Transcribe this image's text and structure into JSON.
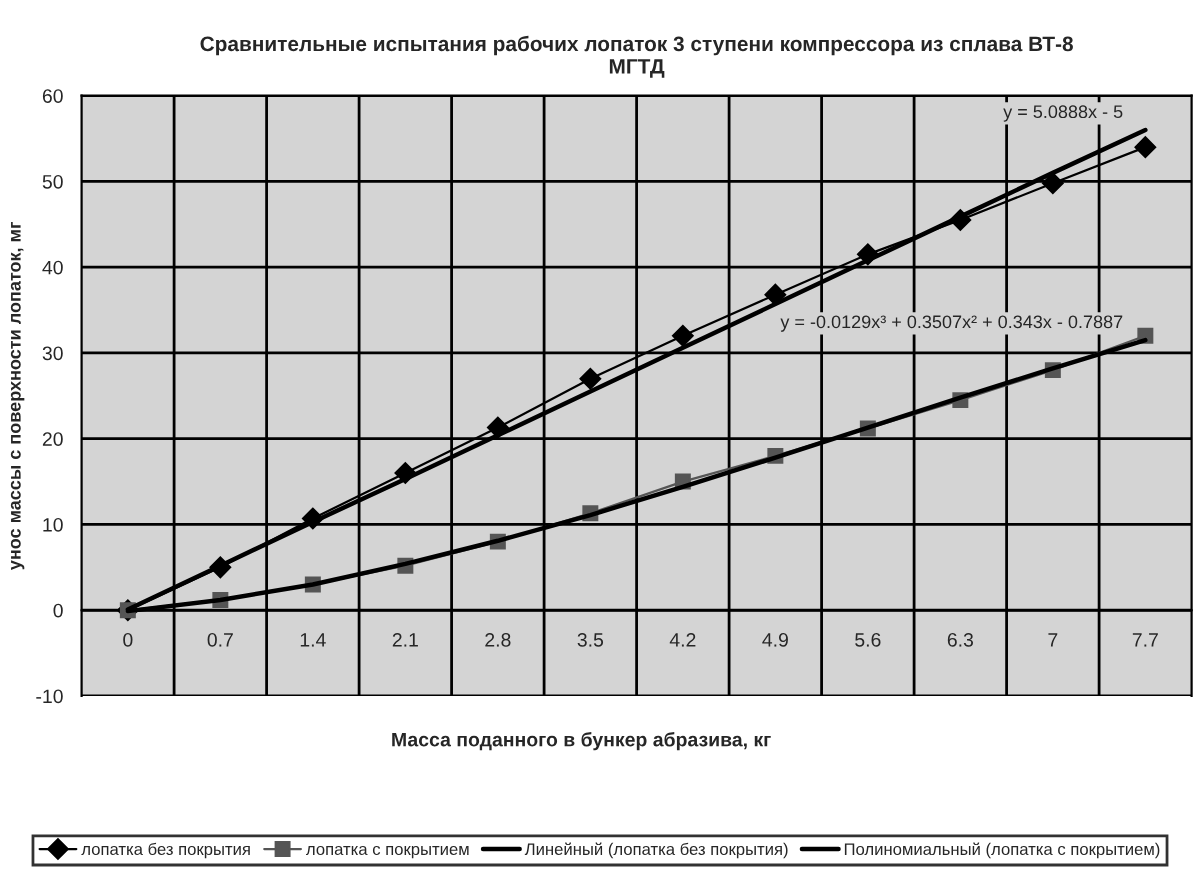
{
  "chart_data": {
    "type": "line",
    "title": "Сравнительные испытания рабочих лопаток 3 ступени компрессора из сплава ВТ-8\nМГТД",
    "xlabel": "Масса поданного в бункер абразива, кг",
    "ylabel": "унос массы с поверхности лопаток, мг",
    "categories": [
      "0",
      "0.7",
      "1.4",
      "2.1",
      "2.8",
      "3.5",
      "4.2",
      "4.9",
      "5.6",
      "6.3",
      "7",
      "7.7"
    ],
    "series": [
      {
        "name": "лопатка без покрытия",
        "color": "#000000",
        "marker": "diamond",
        "values": [
          0,
          5,
          10.7,
          16,
          21.3,
          27,
          32,
          36.8,
          41.5,
          45.5,
          49.8,
          54
        ]
      },
      {
        "name": "лопатка с покрытием",
        "color": "#555555",
        "marker": "square",
        "values": [
          0,
          1.2,
          3,
          5.2,
          8,
          11.3,
          15,
          18,
          21.2,
          24.5,
          28,
          32
        ]
      },
      {
        "name": "Линейный (лопатка без покрытия)",
        "color": "#000000",
        "marker": "none",
        "values": [
          0.1,
          5.2,
          10.3,
          15.3,
          20.4,
          25.5,
          30.6,
          35.7,
          40.8,
          45.9,
          51,
          56
        ]
      },
      {
        "name": "Полиномиальный (лопатка с покрытием)",
        "color": "#000000",
        "marker": "none",
        "values": [
          -0.1,
          1.2,
          3,
          5.4,
          8.1,
          11.1,
          14.4,
          17.8,
          21.3,
          24.8,
          28.2,
          31.5
        ]
      }
    ],
    "annotations": [
      {
        "text": "y = 5.0888x - 5",
        "x": "7.7",
        "y": 56
      },
      {
        "text": "y = -0.0129x³ + 0.3507x² + 0.343x - 0.7887",
        "x": "7.7",
        "y": 31.5
      }
    ],
    "ylim": [
      -10,
      60
    ],
    "yticks": [
      -10,
      0,
      10,
      20,
      30,
      40,
      50,
      60
    ],
    "grid": true,
    "legend": "bottom"
  }
}
